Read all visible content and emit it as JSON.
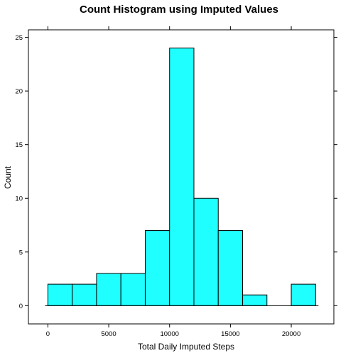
{
  "chart_data": {
    "type": "bar",
    "title": "Count Histogram using Imputed Values",
    "xlabel": "Total Daily Imputed Steps",
    "ylabel": "Count",
    "bin_edges": [
      0,
      2000,
      4000,
      6000,
      8000,
      10000,
      12000,
      14000,
      16000,
      18000,
      20000,
      22000
    ],
    "values": [
      2,
      2,
      3,
      3,
      7,
      24,
      10,
      7,
      1,
      0,
      2
    ],
    "xlim": [
      -1600,
      23500
    ],
    "ylim": [
      -1.7,
      25.7
    ],
    "x_ticks": [
      0,
      5000,
      10000,
      15000,
      20000
    ],
    "x_tick_labels": [
      "0",
      "5000",
      "10000",
      "15000",
      "20000"
    ],
    "y_ticks": [
      0,
      5,
      10,
      15,
      20,
      25
    ],
    "y_tick_labels": [
      "0",
      "5",
      "10",
      "15",
      "20",
      "25"
    ],
    "bar_color": "#1FFFFF",
    "bar_stroke": "#000000",
    "grid": false
  }
}
